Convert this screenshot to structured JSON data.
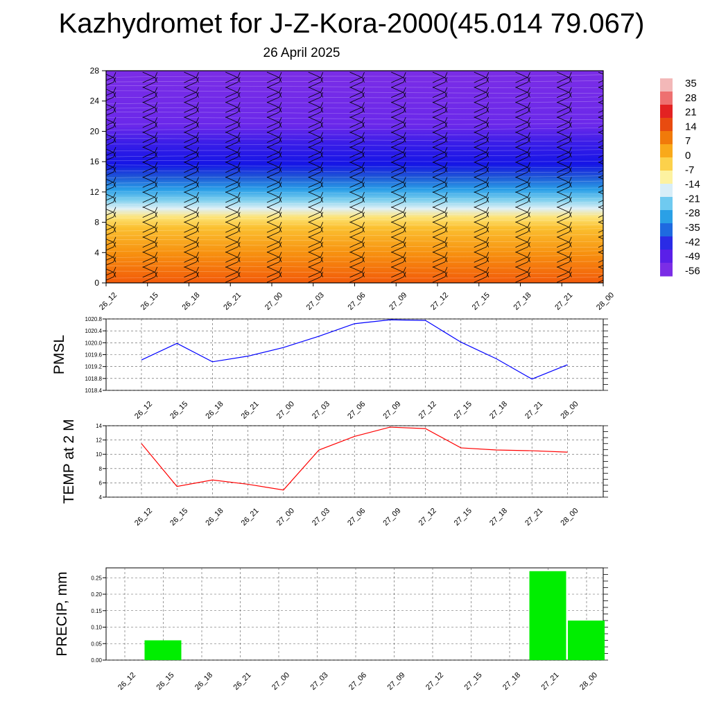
{
  "title": "Kazhydromet for J-Z-Kora-2000(45.014 79.067)",
  "subtitle": "26 April 2025",
  "time_labels": [
    "26_12",
    "26_15",
    "26_18",
    "26_21",
    "27_00",
    "27_03",
    "27_06",
    "27_09",
    "27_12",
    "27_15",
    "27_18",
    "27_21",
    "28_00"
  ],
  "colorbar": {
    "labels": [
      "35",
      "28",
      "21",
      "14",
      "7",
      "0",
      "-7",
      "-14",
      "-21",
      "-28",
      "-35",
      "-42",
      "-49",
      "-56"
    ]
  },
  "chart_data": [
    {
      "type": "heatmap",
      "title": "",
      "xlabel": "",
      "ylabel": "",
      "x": [
        "26_12",
        "26_15",
        "26_18",
        "26_21",
        "27_00",
        "27_03",
        "27_06",
        "27_09",
        "27_12",
        "27_15",
        "27_18",
        "27_21",
        "28_00"
      ],
      "yticks": [
        "0",
        "4",
        "8",
        "12",
        "16",
        "20",
        "24",
        "28"
      ],
      "ylim": [
        0,
        28
      ],
      "zlim": [
        -56,
        35
      ],
      "wind_barbs": true,
      "temperature_profile": [
        {
          "height": 0,
          "value": 18
        },
        {
          "height": 4,
          "value": 10
        },
        {
          "height": 8,
          "value": 0
        },
        {
          "height": 10,
          "value": -8
        },
        {
          "height": 12,
          "value": -22
        },
        {
          "height": 14,
          "value": -35
        },
        {
          "height": 16,
          "value": -46
        },
        {
          "height": 17,
          "value": -60
        },
        {
          "height": 20,
          "value": -62
        },
        {
          "height": 24,
          "value": -60
        },
        {
          "height": 28,
          "value": -62
        }
      ]
    },
    {
      "type": "line",
      "ylabel": "PMSL",
      "x": [
        "26_12",
        "26_15",
        "26_18",
        "26_21",
        "27_00",
        "27_03",
        "27_06",
        "27_09",
        "27_12",
        "27_15",
        "27_18",
        "27_21",
        "28_00"
      ],
      "yticks": [
        "1018.4",
        "1018.8",
        "1019.2",
        "1019.6",
        "1020.0",
        "1020.4",
        "1020.8"
      ],
      "ylim": [
        1018.4,
        1020.8
      ],
      "grid": true,
      "series": [
        {
          "color": "#0000ff",
          "values": [
            1019.42,
            1019.98,
            1019.36,
            1019.55,
            1019.84,
            1020.22,
            1020.64,
            1020.77,
            1020.75,
            1020.02,
            1019.46,
            1018.78,
            1019.26
          ]
        }
      ]
    },
    {
      "type": "line",
      "ylabel": "TEMP at 2 M",
      "x": [
        "26_12",
        "26_15",
        "26_18",
        "26_21",
        "27_00",
        "27_03",
        "27_06",
        "27_09",
        "27_12",
        "27_15",
        "27_18",
        "27_21",
        "28_00"
      ],
      "yticks": [
        "4",
        "6",
        "8",
        "10",
        "12",
        "14"
      ],
      "ylim": [
        4,
        14
      ],
      "grid": true,
      "series": [
        {
          "color": "#ff0000",
          "values": [
            11.5,
            5.5,
            6.4,
            5.8,
            5.0,
            10.6,
            12.5,
            13.8,
            13.6,
            10.9,
            10.6,
            10.5,
            10.3
          ]
        }
      ]
    },
    {
      "type": "bar",
      "ylabel": "PRECIP, mm",
      "categories": [
        "26_12",
        "26_15",
        "26_18",
        "26_21",
        "27_00",
        "27_03",
        "27_06",
        "27_09",
        "27_12",
        "27_15",
        "27_18",
        "27_21",
        "28_00"
      ],
      "yticks": [
        "0.00",
        "0.05",
        "0.10",
        "0.15",
        "0.20",
        "0.25"
      ],
      "ylim": [
        0,
        0.28
      ],
      "grid": true,
      "series": [
        {
          "color": "#00ee00",
          "values": [
            0,
            0.06,
            0,
            0,
            0,
            0,
            0,
            0,
            0,
            0,
            0,
            0.27,
            0.12
          ]
        }
      ]
    }
  ]
}
